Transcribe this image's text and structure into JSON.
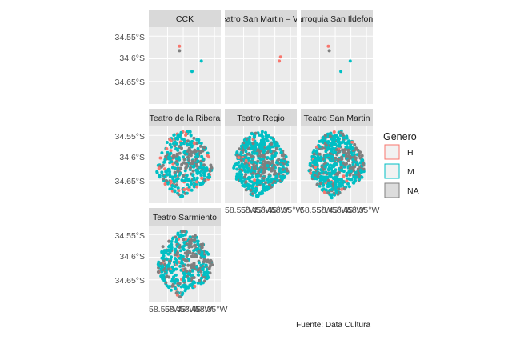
{
  "chart_data": {
    "type": "scatter",
    "facet_by": "venue",
    "facets": [
      {
        "label": "CCK",
        "points": [
          {
            "x": -58.462,
            "y": -34.572,
            "g": "H"
          },
          {
            "x": -58.462,
            "y": -34.582,
            "g": "NA"
          },
          {
            "x": -58.392,
            "y": -34.605,
            "g": "M"
          },
          {
            "x": -58.422,
            "y": -34.628,
            "g": "M"
          }
        ]
      },
      {
        "label": "Teatro San Martin – Vis",
        "points": [
          {
            "x": -58.382,
            "y": -34.596,
            "g": "H"
          },
          {
            "x": -58.386,
            "y": -34.605,
            "g": "H"
          }
        ]
      },
      {
        "label": "Parroquia San Ildefonso",
        "points": [
          {
            "x": -58.472,
            "y": -34.572,
            "g": "H"
          },
          {
            "x": -58.469,
            "y": -34.582,
            "g": "NA"
          },
          {
            "x": -58.402,
            "y": -34.605,
            "g": "M"
          },
          {
            "x": -58.432,
            "y": -34.628,
            "g": "M"
          }
        ]
      },
      {
        "label": "Teatro de la Ribera",
        "scatter_cloud": true
      },
      {
        "label": "Teatro Regio",
        "scatter_cloud": true
      },
      {
        "label": "Teatro San Martin",
        "scatter_cloud": true
      },
      {
        "label": "Teatro Sarmiento",
        "scatter_cloud": true
      }
    ],
    "x_ticks": [
      "58.55°W",
      "58.45°W",
      "58.45°W",
      "58.35°W"
    ],
    "x_tick_values": [
      -58.55,
      -58.45,
      -58.45,
      -58.35
    ],
    "y_ticks": [
      "34.55°S",
      "34.6°S",
      "34.65°S"
    ],
    "y_tick_values": [
      -34.55,
      -34.6,
      -34.65
    ],
    "xlim": [
      -58.56,
      -58.33
    ],
    "ylim": [
      -34.7,
      -34.53
    ],
    "legend": {
      "title": "Genero",
      "position": "right",
      "entries": [
        {
          "key": "H",
          "label": "H",
          "color": "#F8766D"
        },
        {
          "key": "M",
          "label": "M",
          "color": "#00BFC4"
        },
        {
          "key": "NA",
          "label": "NA",
          "color": "#7F7F7F"
        }
      ]
    },
    "caption": "Fuente: Data Cultura",
    "panel_background": "#EBEBEB",
    "strip_background": "#D9D9D9",
    "grid": true
  }
}
